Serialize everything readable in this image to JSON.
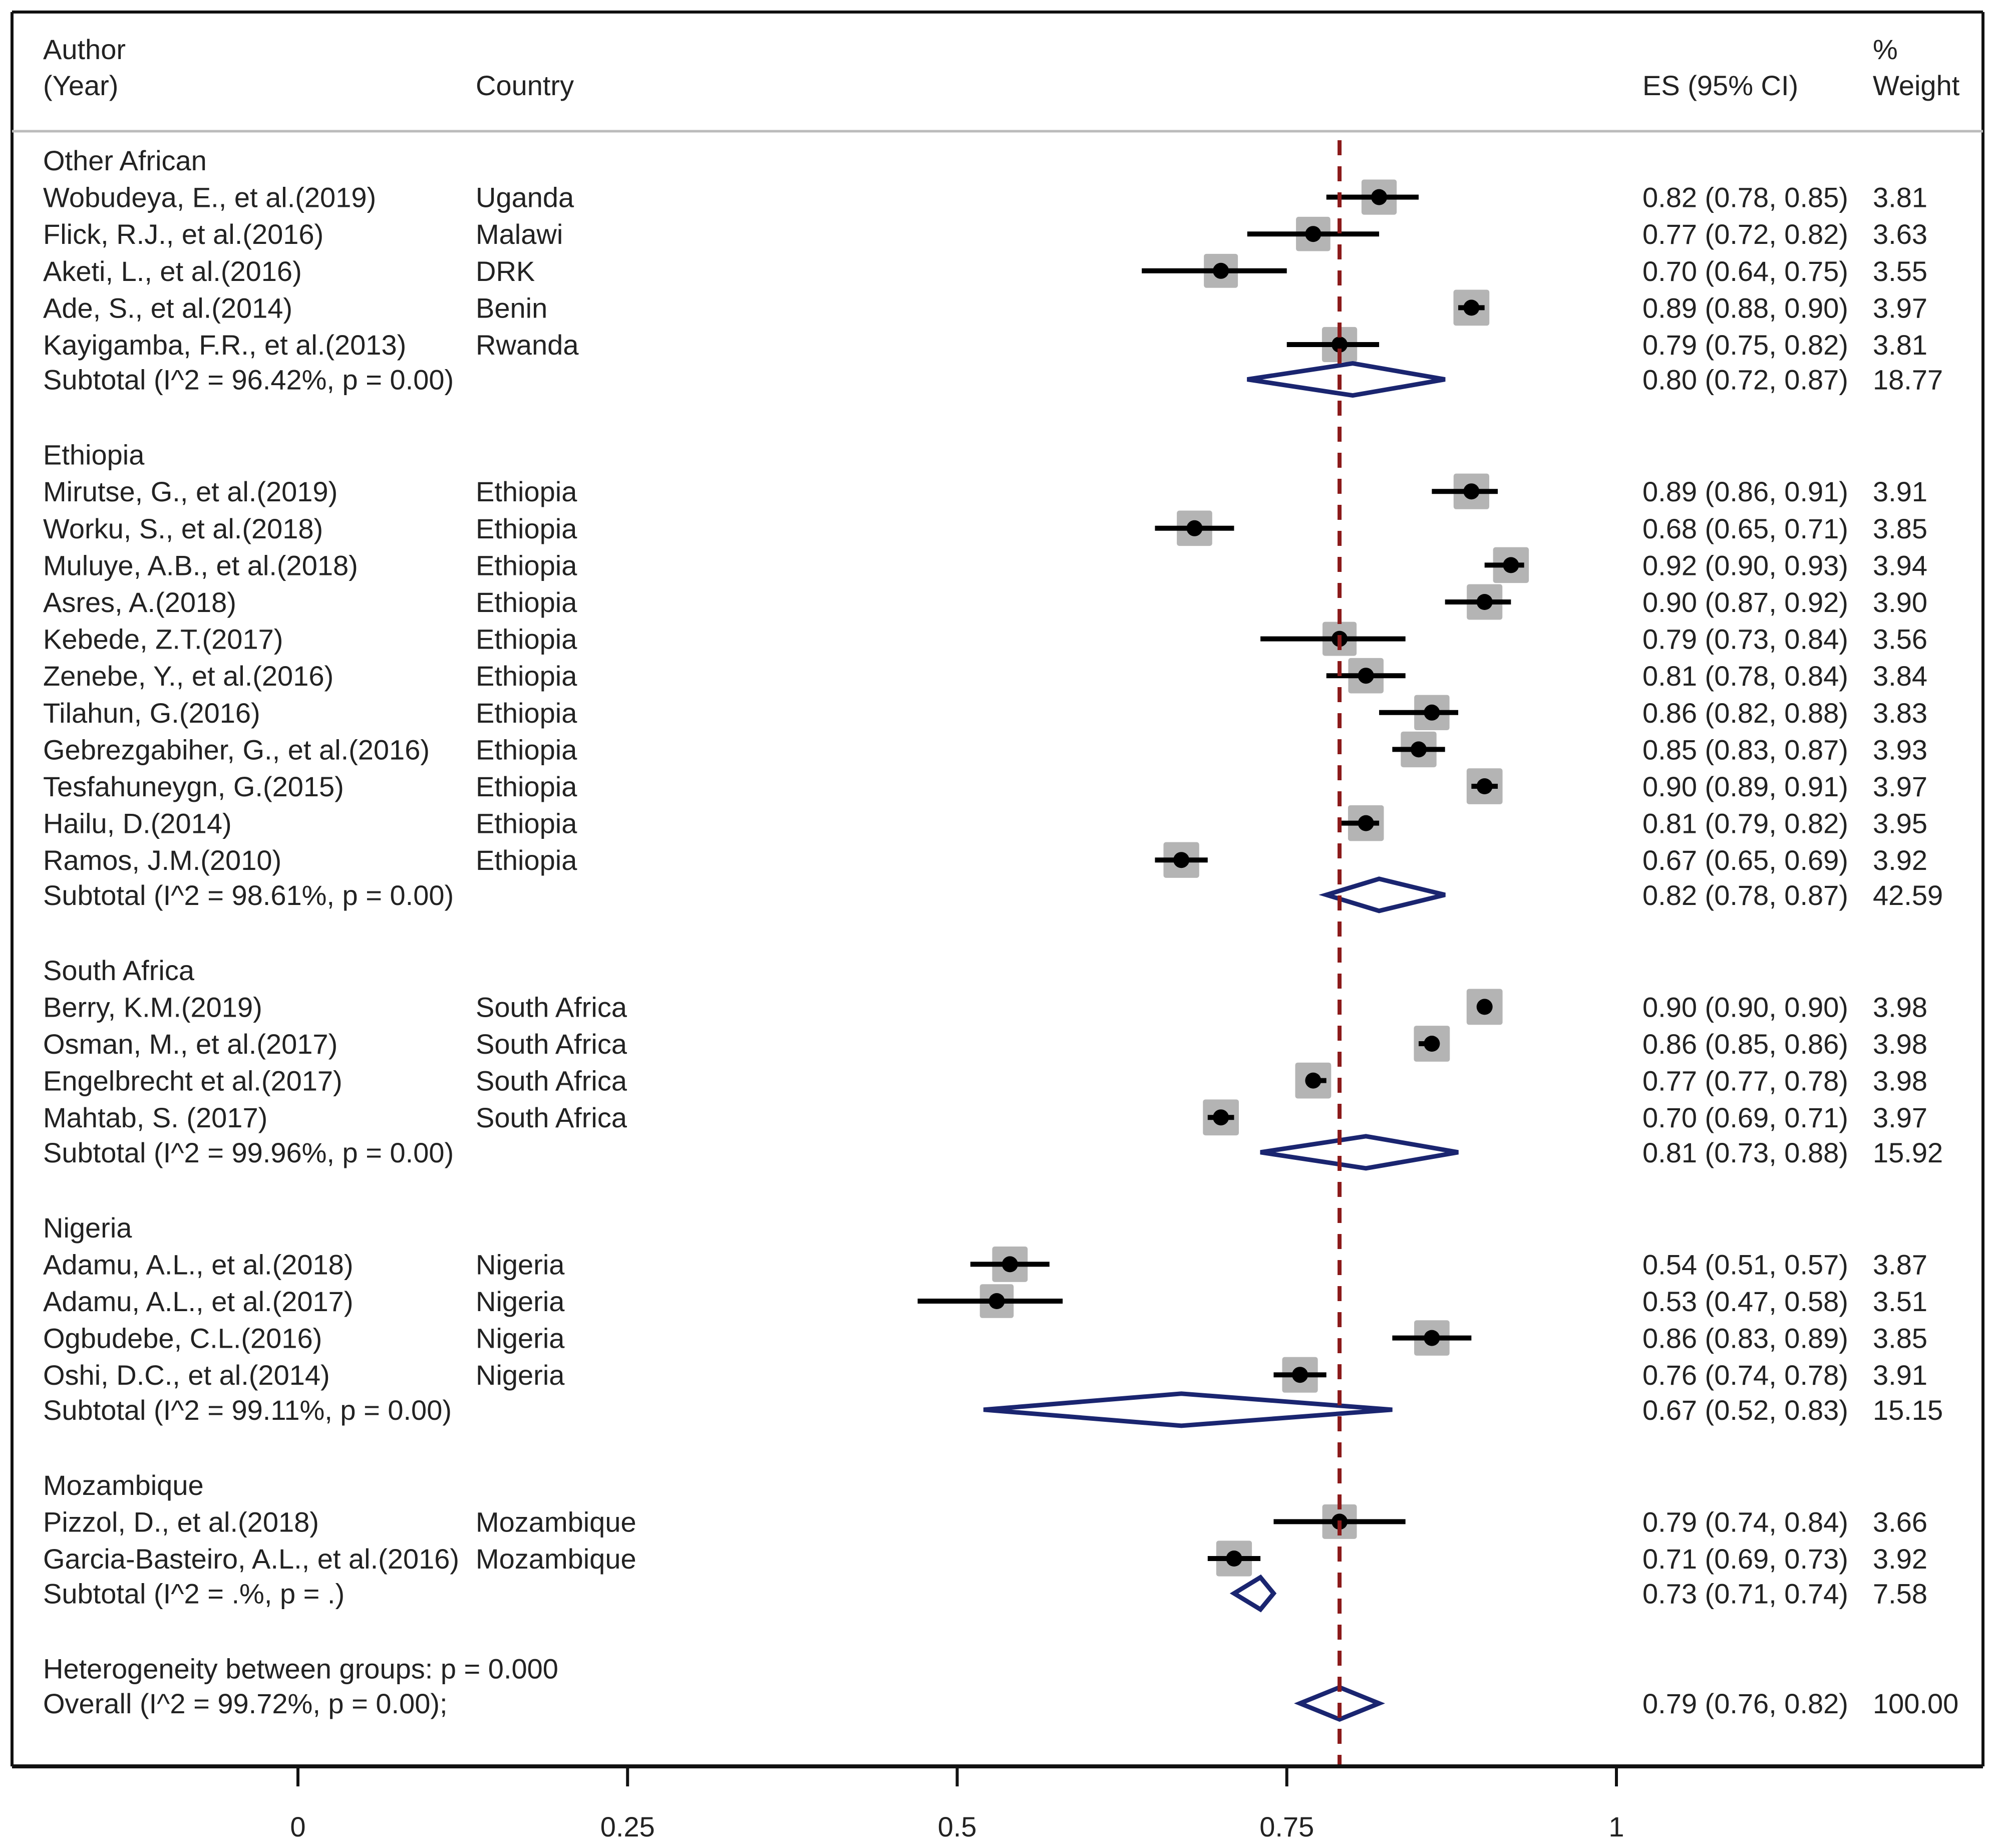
{
  "chart_data": {
    "type": "forest",
    "headers": {
      "author_line1": "Author",
      "author_line2": "(Year)",
      "country": "Country",
      "es": "ES (95% CI)",
      "weight_line1": "%",
      "weight_line2": "Weight"
    },
    "reference_value": 0.79,
    "x_axis": {
      "min": 0,
      "max": 1,
      "ticks": [
        {
          "value": 0,
          "label": "0"
        },
        {
          "value": 0.25,
          "label": "0.25"
        },
        {
          "value": 0.5,
          "label": "0.5"
        },
        {
          "value": 0.75,
          "label": "0.75"
        },
        {
          "value": 1,
          "label": "1"
        }
      ]
    },
    "groups": [
      {
        "name": "Other African",
        "studies": [
          {
            "author": "Wobudeya, E., et al.(2019)",
            "country": "Uganda",
            "es": 0.82,
            "lo": 0.78,
            "hi": 0.85,
            "es_text": "0.82 (0.78, 0.85)",
            "weight": "3.81"
          },
          {
            "author": "Flick, R.J., et al.(2016)",
            "country": "Malawi",
            "es": 0.77,
            "lo": 0.72,
            "hi": 0.82,
            "es_text": "0.77 (0.72, 0.82)",
            "weight": "3.63"
          },
          {
            "author": "Aketi, L., et al.(2016)",
            "country": "DRK",
            "es": 0.7,
            "lo": 0.64,
            "hi": 0.75,
            "es_text": "0.70 (0.64, 0.75)",
            "weight": "3.55"
          },
          {
            "author": "Ade, S., et al.(2014)",
            "country": "Benin",
            "es": 0.89,
            "lo": 0.88,
            "hi": 0.9,
            "es_text": "0.89 (0.88, 0.90)",
            "weight": "3.97"
          },
          {
            "author": "Kayigamba, F.R., et al.(2013)",
            "country": "Rwanda",
            "es": 0.79,
            "lo": 0.75,
            "hi": 0.82,
            "es_text": "0.79 (0.75, 0.82)",
            "weight": "3.81"
          }
        ],
        "subtotal": {
          "label": "Subtotal  (I^2 = 96.42%, p = 0.00)",
          "es": 0.8,
          "lo": 0.72,
          "hi": 0.87,
          "es_text": "0.80 (0.72, 0.87)",
          "weight": "18.77"
        }
      },
      {
        "name": "Ethiopia",
        "studies": [
          {
            "author": "Mirutse, G., et al.(2019)",
            "country": "Ethiopia",
            "es": 0.89,
            "lo": 0.86,
            "hi": 0.91,
            "es_text": "0.89 (0.86, 0.91)",
            "weight": "3.91"
          },
          {
            "author": "Worku, S., et al.(2018)",
            "country": "Ethiopia",
            "es": 0.68,
            "lo": 0.65,
            "hi": 0.71,
            "es_text": "0.68 (0.65, 0.71)",
            "weight": "3.85"
          },
          {
            "author": "Muluye, A.B., et al.(2018)",
            "country": "Ethiopia",
            "es": 0.92,
            "lo": 0.9,
            "hi": 0.93,
            "es_text": "0.92 (0.90, 0.93)",
            "weight": "3.94"
          },
          {
            "author": "Asres, A.(2018)",
            "country": "Ethiopia",
            "es": 0.9,
            "lo": 0.87,
            "hi": 0.92,
            "es_text": "0.90 (0.87, 0.92)",
            "weight": "3.90"
          },
          {
            "author": "Kebede, Z.T.(2017)",
            "country": "Ethiopia",
            "es": 0.79,
            "lo": 0.73,
            "hi": 0.84,
            "es_text": "0.79 (0.73, 0.84)",
            "weight": "3.56"
          },
          {
            "author": "Zenebe, Y., et al.(2016)",
            "country": "Ethiopia",
            "es": 0.81,
            "lo": 0.78,
            "hi": 0.84,
            "es_text": "0.81 (0.78, 0.84)",
            "weight": "3.84"
          },
          {
            "author": "Tilahun, G.(2016)",
            "country": "Ethiopia",
            "es": 0.86,
            "lo": 0.82,
            "hi": 0.88,
            "es_text": "0.86 (0.82, 0.88)",
            "weight": "3.83"
          },
          {
            "author": "Gebrezgabiher, G., et al.(2016)",
            "country": "Ethiopia",
            "es": 0.85,
            "lo": 0.83,
            "hi": 0.87,
            "es_text": "0.85 (0.83, 0.87)",
            "weight": "3.93"
          },
          {
            "author": "Tesfahuneygn, G.(2015)",
            "country": "Ethiopia",
            "es": 0.9,
            "lo": 0.89,
            "hi": 0.91,
            "es_text": "0.90 (0.89, 0.91)",
            "weight": "3.97"
          },
          {
            "author": "Hailu, D.(2014)",
            "country": "Ethiopia",
            "es": 0.81,
            "lo": 0.79,
            "hi": 0.82,
            "es_text": "0.81 (0.79, 0.82)",
            "weight": "3.95"
          },
          {
            "author": "Ramos, J.M.(2010)",
            "country": "Ethiopia",
            "es": 0.67,
            "lo": 0.65,
            "hi": 0.69,
            "es_text": "0.67 (0.65, 0.69)",
            "weight": "3.92"
          }
        ],
        "subtotal": {
          "label": "Subtotal  (I^2 = 98.61%, p = 0.00)",
          "es": 0.82,
          "lo": 0.78,
          "hi": 0.87,
          "es_text": "0.82 (0.78, 0.87)",
          "weight": "42.59"
        }
      },
      {
        "name": "South Africa",
        "studies": [
          {
            "author": "Berry, K.M.(2019)",
            "country": "South Africa",
            "es": 0.9,
            "lo": 0.9,
            "hi": 0.9,
            "es_text": "0.90 (0.90, 0.90)",
            "weight": "3.98"
          },
          {
            "author": "Osman, M., et al.(2017)",
            "country": "South Africa",
            "es": 0.86,
            "lo": 0.85,
            "hi": 0.86,
            "es_text": "0.86 (0.85, 0.86)",
            "weight": "3.98"
          },
          {
            "author": "Engelbrecht et al.(2017)",
            "country": "South Africa",
            "es": 0.77,
            "lo": 0.77,
            "hi": 0.78,
            "es_text": "0.77 (0.77, 0.78)",
            "weight": "3.98"
          },
          {
            "author": "Mahtab, S. (2017)",
            "country": "South Africa",
            "es": 0.7,
            "lo": 0.69,
            "hi": 0.71,
            "es_text": "0.70 (0.69, 0.71)",
            "weight": "3.97"
          }
        ],
        "subtotal": {
          "label": "Subtotal  (I^2 = 99.96%, p = 0.00)",
          "es": 0.81,
          "lo": 0.73,
          "hi": 0.88,
          "es_text": "0.81 (0.73, 0.88)",
          "weight": "15.92"
        }
      },
      {
        "name": "Nigeria",
        "studies": [
          {
            "author": "Adamu, A.L., et al.(2018)",
            "country": "Nigeria",
            "es": 0.54,
            "lo": 0.51,
            "hi": 0.57,
            "es_text": "0.54 (0.51, 0.57)",
            "weight": "3.87"
          },
          {
            "author": "Adamu, A.L., et al.(2017)",
            "country": "Nigeria",
            "es": 0.53,
            "lo": 0.47,
            "hi": 0.58,
            "es_text": "0.53 (0.47, 0.58)",
            "weight": "3.51"
          },
          {
            "author": "Ogbudebe, C.L.(2016)",
            "country": "Nigeria",
            "es": 0.86,
            "lo": 0.83,
            "hi": 0.89,
            "es_text": "0.86 (0.83, 0.89)",
            "weight": "3.85"
          },
          {
            "author": "Oshi, D.C., et al.(2014)",
            "country": "Nigeria",
            "es": 0.76,
            "lo": 0.74,
            "hi": 0.78,
            "es_text": "0.76 (0.74, 0.78)",
            "weight": "3.91"
          }
        ],
        "subtotal": {
          "label": "Subtotal  (I^2 = 99.11%, p = 0.00)",
          "es": 0.67,
          "lo": 0.52,
          "hi": 0.83,
          "es_text": "0.67 (0.52, 0.83)",
          "weight": "15.15"
        }
      },
      {
        "name": "Mozambique",
        "studies": [
          {
            "author": "Pizzol, D., et al.(2018)",
            "country": "Mozambique",
            "es": 0.79,
            "lo": 0.74,
            "hi": 0.84,
            "es_text": "0.79 (0.74, 0.84)",
            "weight": "3.66"
          },
          {
            "author": "Garcia-Basteiro, A.L., et al.(2016)",
            "country": "Mozambique",
            "es": 0.71,
            "lo": 0.69,
            "hi": 0.73,
            "es_text": "0.71 (0.69, 0.73)",
            "weight": "3.92"
          }
        ],
        "subtotal": {
          "label": "Subtotal  (I^2 = .%, p = .)",
          "es": 0.73,
          "lo": 0.71,
          "hi": 0.74,
          "es_text": "0.73 (0.71, 0.74)",
          "weight": "7.58"
        }
      }
    ],
    "heterogeneity_text": "Heterogeneity between groups: p = 0.000",
    "overall": {
      "label": "Overall  (I^2 = 99.72%, p = 0.00);",
      "es": 0.79,
      "lo": 0.76,
      "hi": 0.82,
      "es_text": "0.79 (0.76, 0.82)",
      "weight": "100.00"
    },
    "colors": {
      "text": "#222222",
      "frame": "#111111",
      "ci_line": "#000000",
      "point": "#000000",
      "weight_box": "#b4b4b4",
      "diamond": "#1a2570",
      "reference_line": "#8b1a1a"
    }
  }
}
